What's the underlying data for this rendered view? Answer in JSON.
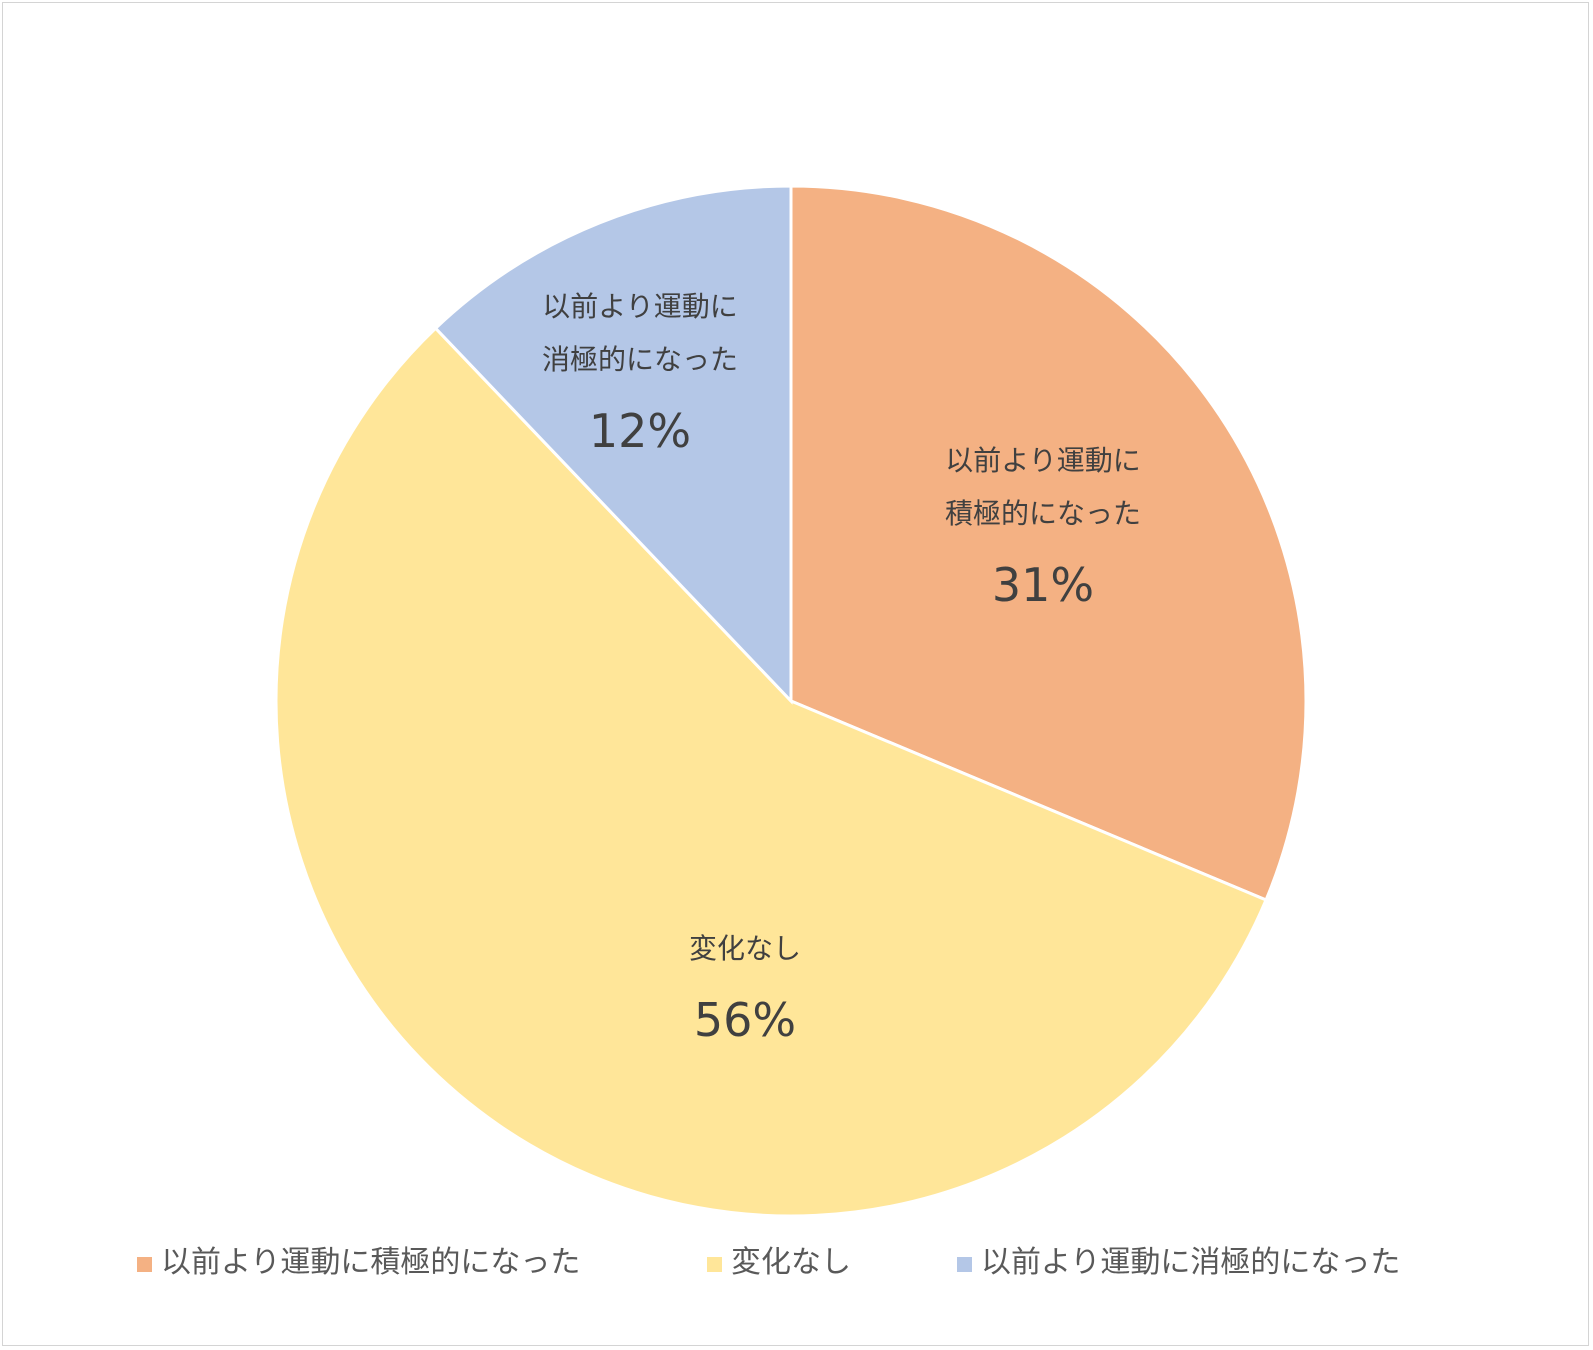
{
  "chart_data": {
    "type": "pie",
    "title": "",
    "categories": [
      "以前より運動に積極的になった",
      "変化なし",
      "以前より運動に消極的になった"
    ],
    "values": [
      31,
      56,
      12
    ],
    "unit": "%",
    "slice_labels": [
      {
        "lines": [
          "以前より運動に",
          "積極的になった"
        ],
        "percent": "31%"
      },
      {
        "lines": [
          "変化なし"
        ],
        "percent": "56%"
      },
      {
        "lines": [
          "以前より運動に",
          "消極的になった"
        ],
        "percent": "12%"
      }
    ],
    "colors": [
      "#F4B183",
      "#FFE699",
      "#B4C7E7"
    ],
    "start_angle": "12 o'clock, clockwise",
    "legend": {
      "position": "bottom",
      "entries": [
        "以前より運動に積極的になった",
        "変化なし",
        "以前より運動に消極的になった"
      ]
    }
  }
}
